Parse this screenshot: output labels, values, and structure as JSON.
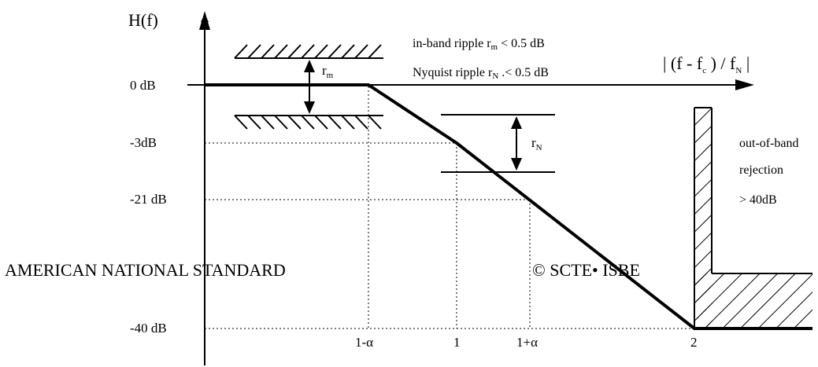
{
  "y_axis": {
    "label": "H(f)"
  },
  "x_axis": {
    "label_parts": {
      "open": "| (f - f",
      "sub1": "c",
      "mid": " ) / f",
      "sub2": "N",
      "close": " |"
    }
  },
  "y_ticks": [
    "0 dB",
    "-3dB",
    "-21 dB",
    "-40 dB"
  ],
  "x_ticks": [
    "1-α",
    "1",
    "1+α",
    "2"
  ],
  "ripple_notes": {
    "inband": {
      "prefix": "in-band ripple r",
      "sub": "m",
      "suffix": " < 0.5 dB"
    },
    "nyquist": {
      "prefix": "Nyquist ripple r",
      "sub": "N",
      "suffix": " .< 0.5 dB"
    }
  },
  "rm_marker": {
    "base": "r",
    "sub": "m"
  },
  "rn_marker": {
    "base": "r",
    "sub": "N"
  },
  "rejection": {
    "line1": "out-of-band",
    "line2": "rejection",
    "line3": "> 40dB"
  },
  "watermark": {
    "left": "AMERICAN NATIONAL STANDARD",
    "right": "© SCTE• ISBE"
  }
}
